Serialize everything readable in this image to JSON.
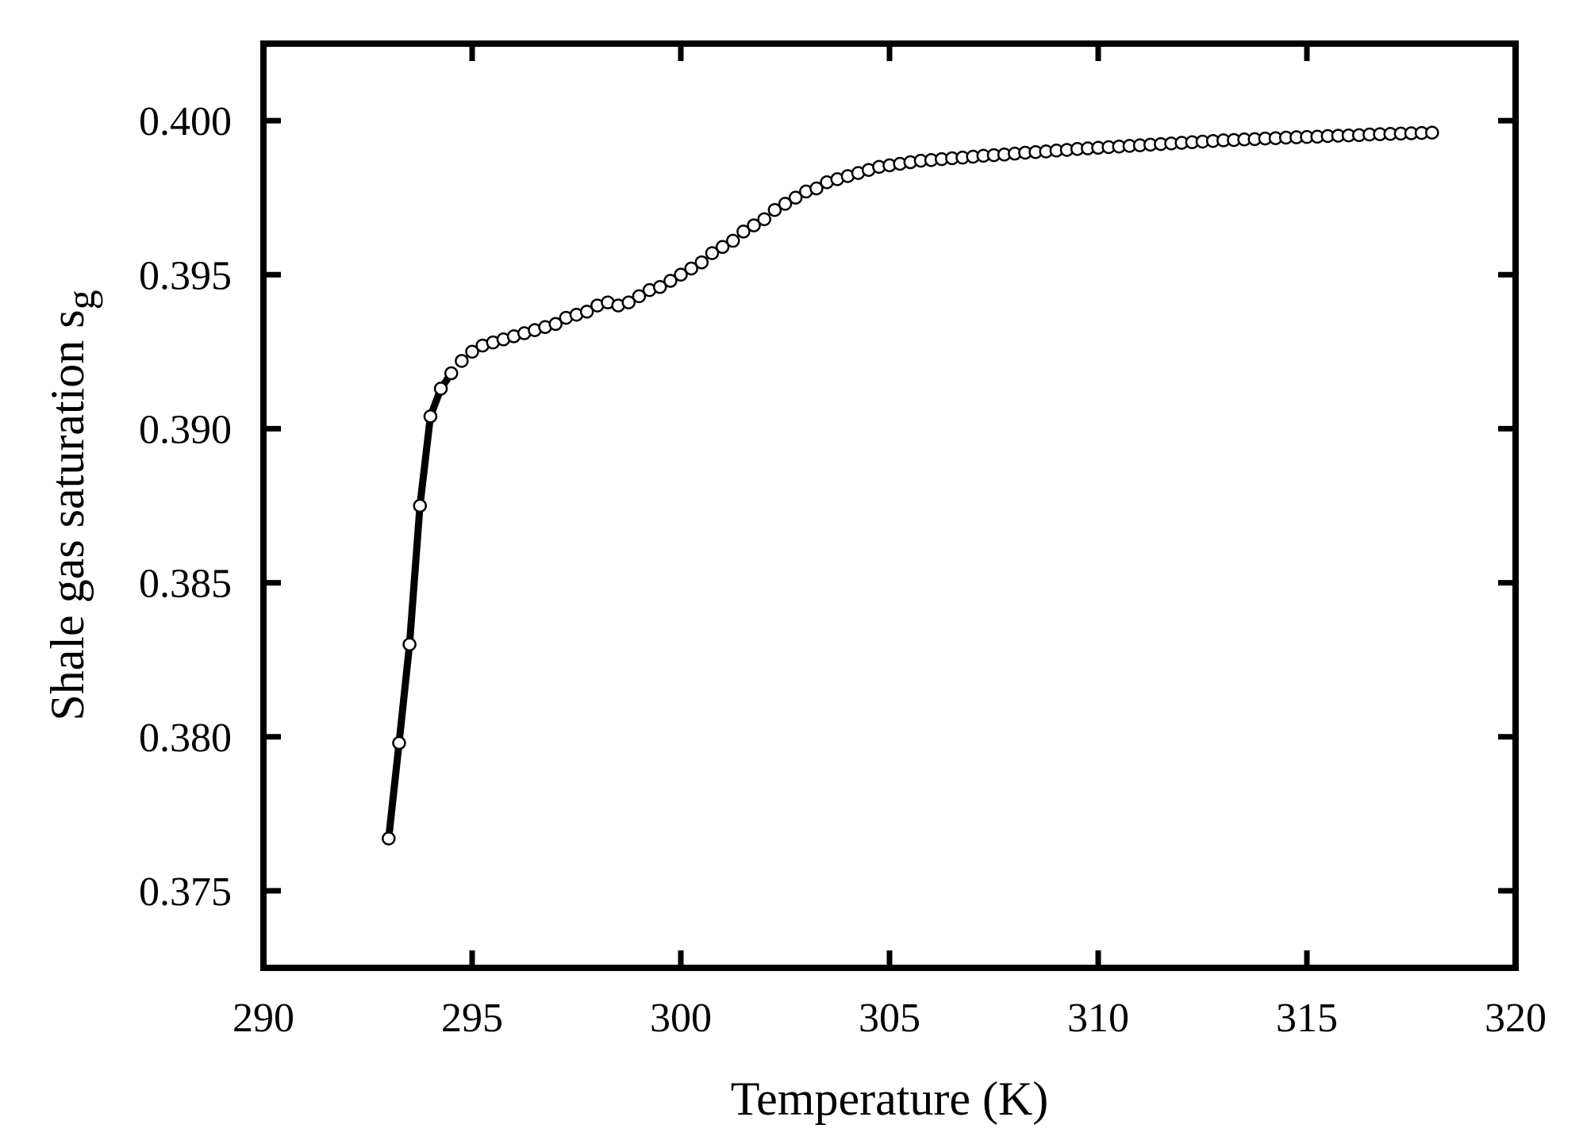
{
  "chart_data": {
    "type": "line",
    "title": "",
    "xlabel": "Temperature (K)",
    "ylabel_main": "Shale gas saturation s",
    "ylabel_sub": "g",
    "xlim": [
      290,
      320
    ],
    "ylim": [
      0.3725,
      0.4025
    ],
    "xticks": [
      {
        "value": 290,
        "label": "290"
      },
      {
        "value": 295,
        "label": "295"
      },
      {
        "value": 300,
        "label": "300"
      },
      {
        "value": 305,
        "label": "305"
      },
      {
        "value": 310,
        "label": "310"
      },
      {
        "value": 315,
        "label": "315"
      },
      {
        "value": 320,
        "label": "320"
      }
    ],
    "yticks": [
      {
        "value": 0.375,
        "label": "0.375"
      },
      {
        "value": 0.38,
        "label": "0.380"
      },
      {
        "value": 0.385,
        "label": "0.385"
      },
      {
        "value": 0.39,
        "label": "0.390"
      },
      {
        "value": 0.395,
        "label": "0.395"
      },
      {
        "value": 0.4,
        "label": "0.400"
      }
    ],
    "grid": false,
    "series": [
      {
        "style": "thick black line with open circle markers",
        "line_color": "#000000",
        "marker_fill": "#ffffff",
        "x": [
          293.0,
          293.25,
          293.5,
          293.75,
          294.0,
          294.25,
          294.5,
          294.75,
          295.0,
          295.25,
          295.5,
          295.75,
          296.0,
          296.25,
          296.5,
          296.75,
          297.0,
          297.25,
          297.5,
          297.75,
          298.0,
          298.25,
          298.5,
          298.75,
          299.0,
          299.25,
          299.5,
          299.75,
          300.0,
          300.25,
          300.5,
          300.75,
          301.0,
          301.25,
          301.5,
          301.75,
          302.0,
          302.25,
          302.5,
          302.75,
          303.0,
          303.25,
          303.5,
          303.75,
          304.0,
          304.25,
          304.5,
          304.75,
          305.0,
          305.25,
          305.5,
          305.75,
          306.0,
          306.25,
          306.5,
          306.75,
          307.0,
          307.25,
          307.5,
          307.75,
          308.0,
          308.25,
          308.5,
          308.75,
          309.0,
          309.25,
          309.5,
          309.75,
          310.0,
          310.25,
          310.5,
          310.75,
          311.0,
          311.25,
          311.5,
          311.75,
          312.0,
          312.25,
          312.5,
          312.75,
          313.0,
          313.25,
          313.5,
          313.75,
          314.0,
          314.25,
          314.5,
          314.75,
          315.0,
          315.25,
          315.5,
          315.75,
          316.0,
          316.25,
          316.5,
          316.75,
          317.0,
          317.25,
          317.5,
          317.75,
          318.0
        ],
        "y": [
          0.3767,
          0.3798,
          0.383,
          0.3875,
          0.3904,
          0.3913,
          0.3918,
          0.3922,
          0.3925,
          0.3927,
          0.3928,
          0.3929,
          0.393,
          0.3931,
          0.3932,
          0.3933,
          0.3934,
          0.3936,
          0.3937,
          0.3938,
          0.394,
          0.3941,
          0.394,
          0.3941,
          0.3943,
          0.3945,
          0.3946,
          0.3948,
          0.395,
          0.3952,
          0.3954,
          0.3957,
          0.3959,
          0.3961,
          0.3964,
          0.3966,
          0.3968,
          0.3971,
          0.3973,
          0.3975,
          0.3977,
          0.3978,
          0.398,
          0.3981,
          0.3982,
          0.3983,
          0.3984,
          0.3985,
          0.39855,
          0.3986,
          0.39865,
          0.3987,
          0.39872,
          0.39875,
          0.39878,
          0.3988,
          0.39883,
          0.39886,
          0.39888,
          0.3989,
          0.39893,
          0.39896,
          0.39898,
          0.399,
          0.39903,
          0.39905,
          0.39908,
          0.3991,
          0.39912,
          0.39914,
          0.39916,
          0.39918,
          0.3992,
          0.39922,
          0.39924,
          0.39926,
          0.39928,
          0.3993,
          0.39932,
          0.39934,
          0.39936,
          0.39937,
          0.39939,
          0.3994,
          0.39942,
          0.39943,
          0.39945,
          0.39946,
          0.39947,
          0.39948,
          0.3995,
          0.39951,
          0.39952,
          0.39953,
          0.39955,
          0.39956,
          0.39957,
          0.39958,
          0.39959,
          0.3996,
          0.39961
        ],
        "thick_line_upto_x": 294.5
      }
    ]
  }
}
